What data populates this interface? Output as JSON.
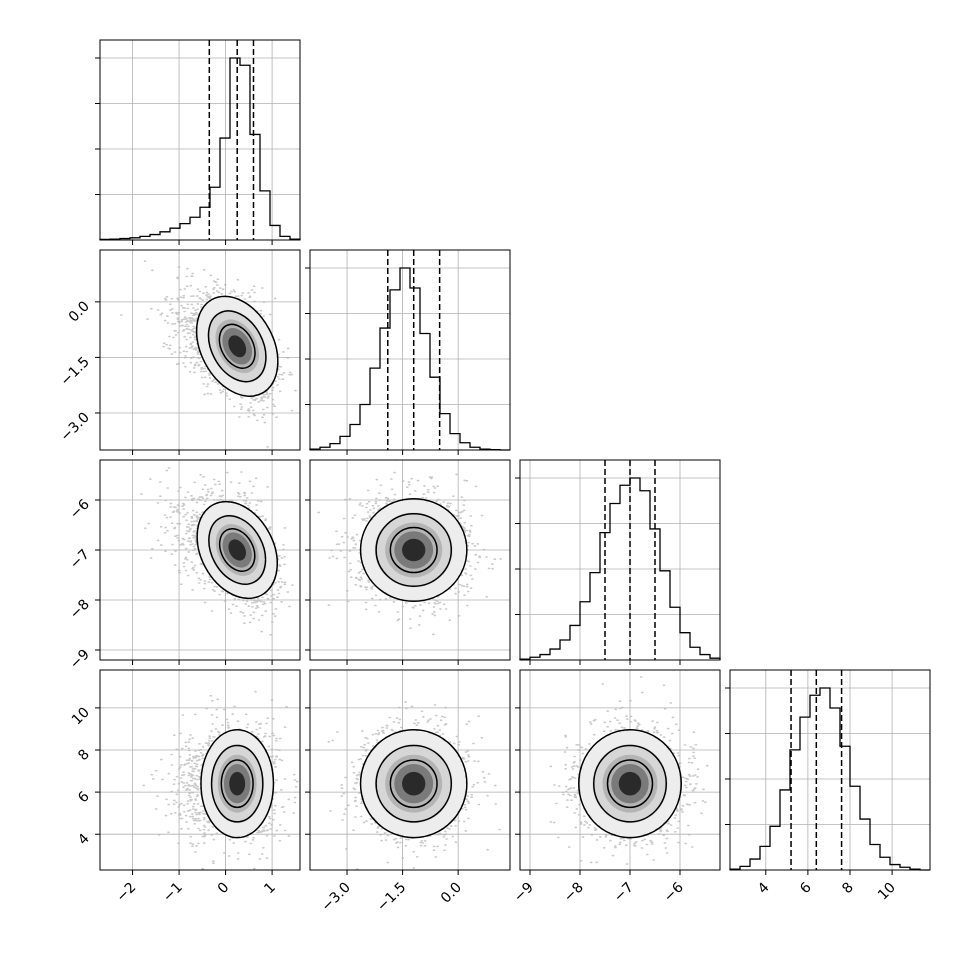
{
  "chart_data": {
    "type": "corner",
    "grid": true,
    "x_ticks": [
      {
        "labels": [
          "−2",
          "−1",
          "0",
          "1"
        ],
        "values": [
          -2,
          -1,
          0,
          1
        ],
        "range": [
          -2.7,
          1.6
        ]
      },
      {
        "labels": [
          "−3.0",
          "−1.5",
          "0.0"
        ],
        "values": [
          -3.0,
          -1.5,
          0.0
        ],
        "range": [
          -4.0,
          1.4
        ]
      },
      {
        "labels": [
          "−9",
          "−8",
          "−7",
          "−6"
        ],
        "values": [
          -9,
          -8,
          -7,
          -6
        ],
        "range": [
          -9.2,
          -5.2
        ]
      },
      {
        "labels": [
          "4",
          "6",
          "8",
          "10"
        ],
        "values": [
          4,
          6,
          8,
          10
        ],
        "range": [
          2.3,
          11.8
        ]
      }
    ],
    "y_ticks": [
      null,
      {
        "labels": [
          "0.0",
          "−1.5",
          "−3.0"
        ],
        "values": [
          0.0,
          -1.5,
          -3.0
        ],
        "range": [
          -4.0,
          1.4
        ]
      },
      {
        "labels": [
          "−6",
          "−7",
          "−8",
          "−9"
        ],
        "values": [
          -6,
          -7,
          -8,
          -9
        ],
        "range": [
          -9.2,
          -5.2
        ]
      },
      {
        "labels": [
          "10",
          "8",
          "6",
          "4"
        ],
        "values": [
          10,
          8,
          6,
          4
        ],
        "range": [
          2.3,
          11.8
        ]
      }
    ],
    "parameters": [
      {
        "mean": 0.25,
        "sd": 0.38,
        "skew": "left",
        "quantiles": [
          -0.35,
          0.25,
          0.6
        ],
        "hist_range": [
          -2.7,
          1.6
        ],
        "hist": [
          0.3,
          0.5,
          0.8,
          1.2,
          2.0,
          3.0,
          4.5,
          6.5,
          9.0,
          12.5,
          18.0,
          29.0,
          56.0,
          100.0,
          96.0,
          58.0,
          27.0,
          8.0,
          2.0,
          0.5
        ]
      },
      {
        "mean": -1.2,
        "sd": 0.7,
        "skew": "none",
        "quantiles": [
          -1.9,
          -1.2,
          -0.5
        ],
        "hist_range": [
          -4.0,
          1.4
        ],
        "hist": [
          0.5,
          1.5,
          3.5,
          7.5,
          14.0,
          25.0,
          45.0,
          67.0,
          88.0,
          100.0,
          89.0,
          64.0,
          40.0,
          20.0,
          9.0,
          4.0,
          1.5,
          0.5,
          0.2,
          0.0
        ]
      },
      {
        "mean": -7.0,
        "sd": 0.5,
        "skew": "none",
        "quantiles": [
          -7.5,
          -7.0,
          -6.5
        ],
        "hist_range": [
          -9.2,
          -5.2
        ],
        "hist": [
          0.5,
          1.5,
          3.0,
          6.0,
          11.0,
          19.0,
          32.0,
          48.0,
          70.0,
          86.0,
          96.0,
          100.0,
          93.0,
          72.0,
          49.0,
          29.0,
          15.0,
          7.0,
          3.0,
          1.0
        ]
      },
      {
        "mean": 6.4,
        "sd": 1.25,
        "skew": "none",
        "quantiles": [
          5.2,
          6.4,
          7.6
        ],
        "hist_range": [
          2.3,
          11.8
        ],
        "hist": [
          0.5,
          2.0,
          6.0,
          13.0,
          24.0,
          44.0,
          66.0,
          84.0,
          96.0,
          100.0,
          89.0,
          68.0,
          46.0,
          28.0,
          14.0,
          7.0,
          3.0,
          1.5,
          0.5,
          0.0
        ]
      }
    ]
  }
}
